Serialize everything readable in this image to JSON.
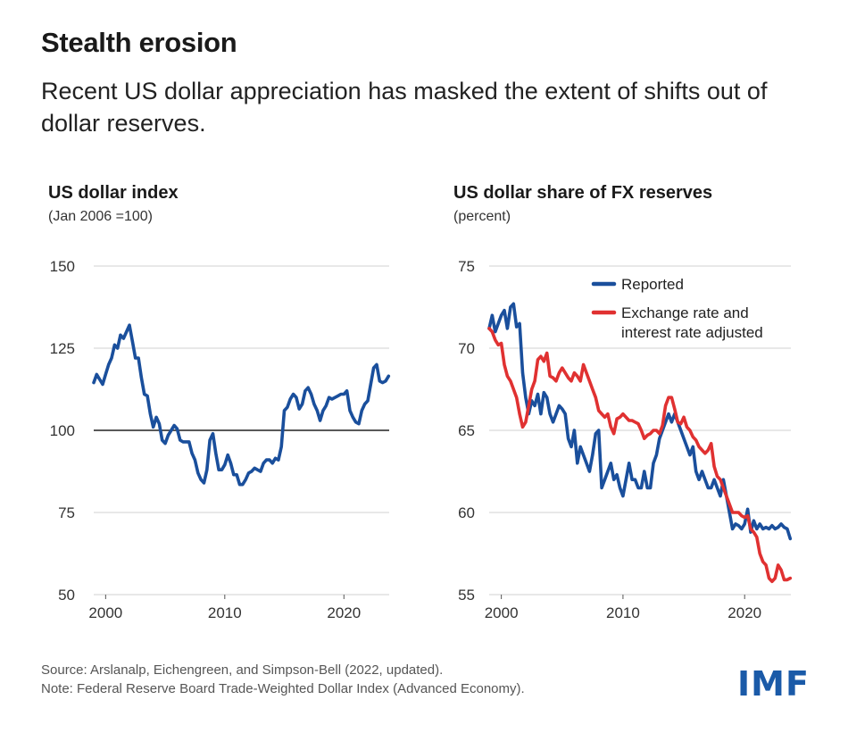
{
  "title": "Stealth erosion",
  "subtitle": "Recent US dollar appreciation has masked the extent of shifts out of dollar reserves.",
  "source_note": "Source: Arslanalp, Eichengreen, and Simpson-Bell (2022, updated).",
  "note": "Note: Federal Reserve Board Trade-Weighted Dollar Index (Advanced Economy).",
  "logo_text": "IMF",
  "colors": {
    "blue": "#1a4f9c",
    "red": "#e03131",
    "grid": "#d0d0d0",
    "reference": "#222222"
  },
  "chart_data": [
    {
      "type": "line",
      "title": "US dollar index",
      "subtitle": "(Jan 2006 =100)",
      "ylim": [
        50,
        150
      ],
      "yticks": [
        50,
        75,
        100,
        125,
        150
      ],
      "xlim": [
        1999,
        2023.8
      ],
      "xticks": [
        2000,
        2010,
        2020
      ],
      "grid": true,
      "reference_line": 100,
      "series": [
        {
          "color": "#1a4f9c",
          "x": [
            1999.0,
            1999.25,
            1999.5,
            1999.75,
            2000.0,
            2000.25,
            2000.5,
            2000.75,
            2001.0,
            2001.25,
            2001.5,
            2001.75,
            2002.0,
            2002.25,
            2002.5,
            2002.75,
            2003.0,
            2003.25,
            2003.5,
            2003.75,
            2004.0,
            2004.25,
            2004.5,
            2004.75,
            2005.0,
            2005.25,
            2005.5,
            2005.75,
            2006.0,
            2006.25,
            2006.5,
            2006.75,
            2007.0,
            2007.25,
            2007.5,
            2007.75,
            2008.0,
            2008.25,
            2008.5,
            2008.75,
            2009.0,
            2009.25,
            2009.5,
            2009.75,
            2010.0,
            2010.25,
            2010.5,
            2010.75,
            2011.0,
            2011.25,
            2011.5,
            2011.75,
            2012.0,
            2012.25,
            2012.5,
            2012.75,
            2013.0,
            2013.25,
            2013.5,
            2013.75,
            2014.0,
            2014.25,
            2014.5,
            2014.75,
            2015.0,
            2015.25,
            2015.5,
            2015.75,
            2016.0,
            2016.25,
            2016.5,
            2016.75,
            2017.0,
            2017.25,
            2017.5,
            2017.75,
            2018.0,
            2018.25,
            2018.5,
            2018.75,
            2019.0,
            2019.25,
            2019.5,
            2019.75,
            2020.0,
            2020.25,
            2020.5,
            2020.75,
            2021.0,
            2021.25,
            2021.5,
            2021.75,
            2022.0,
            2022.25,
            2022.5,
            2022.75,
            2023.0,
            2023.25,
            2023.5,
            2023.75
          ],
          "y": [
            114.5,
            117,
            115.5,
            114,
            117,
            120,
            122,
            126,
            125,
            129,
            128,
            130,
            132,
            127,
            122,
            122,
            116,
            111,
            110.5,
            105,
            101,
            104,
            102,
            97,
            96,
            98.5,
            100,
            101.5,
            100.5,
            97,
            96.5,
            96.5,
            96.5,
            93,
            91,
            87,
            85,
            84,
            88,
            97,
            99,
            93,
            88,
            88,
            89.5,
            92.5,
            90,
            86.5,
            86.5,
            83.5,
            83.5,
            85,
            87,
            87.5,
            88.5,
            88,
            87.5,
            90,
            91,
            91,
            90,
            91.5,
            91,
            95,
            106,
            107,
            109.5,
            111,
            110,
            106.5,
            108,
            112,
            113,
            111,
            108,
            106,
            103,
            106,
            107.5,
            110,
            109.5,
            110,
            110.5,
            111,
            111,
            112,
            106,
            104,
            102.5,
            102,
            106,
            108,
            109,
            114,
            119,
            120,
            115,
            114.5,
            115,
            116.5
          ]
        }
      ]
    },
    {
      "type": "line",
      "title": "US dollar share of FX reserves",
      "subtitle": "(percent)",
      "ylim": [
        55,
        75
      ],
      "yticks": [
        55,
        60,
        65,
        70,
        75
      ],
      "xlim": [
        1999,
        2023.8
      ],
      "xticks": [
        2000,
        2010,
        2020
      ],
      "grid": true,
      "legend_position": "top-right",
      "series": [
        {
          "name": "Reported",
          "color": "#1a4f9c",
          "x": [
            1999.0,
            1999.25,
            1999.5,
            1999.75,
            2000.0,
            2000.25,
            2000.5,
            2000.75,
            2001.0,
            2001.25,
            2001.5,
            2001.75,
            2002.0,
            2002.25,
            2002.5,
            2002.75,
            2003.0,
            2003.25,
            2003.5,
            2003.75,
            2004.0,
            2004.25,
            2004.5,
            2004.75,
            2005.0,
            2005.25,
            2005.5,
            2005.75,
            2006.0,
            2006.25,
            2006.5,
            2006.75,
            2007.0,
            2007.25,
            2007.5,
            2007.75,
            2008.0,
            2008.25,
            2008.5,
            2008.75,
            2009.0,
            2009.25,
            2009.5,
            2009.75,
            2010.0,
            2010.25,
            2010.5,
            2010.75,
            2011.0,
            2011.25,
            2011.5,
            2011.75,
            2012.0,
            2012.25,
            2012.5,
            2012.75,
            2013.0,
            2013.25,
            2013.5,
            2013.75,
            2014.0,
            2014.25,
            2014.5,
            2014.75,
            2015.0,
            2015.25,
            2015.5,
            2015.75,
            2016.0,
            2016.25,
            2016.5,
            2016.75,
            2017.0,
            2017.25,
            2017.5,
            2017.75,
            2018.0,
            2018.25,
            2018.5,
            2018.75,
            2019.0,
            2019.25,
            2019.5,
            2019.75,
            2020.0,
            2020.25,
            2020.5,
            2020.75,
            2021.0,
            2021.25,
            2021.5,
            2021.75,
            2022.0,
            2022.25,
            2022.5,
            2022.75,
            2023.0,
            2023.25,
            2023.5,
            2023.75
          ],
          "y": [
            71.2,
            72.0,
            71.0,
            71.5,
            72.0,
            72.3,
            71.2,
            72.5,
            72.7,
            71.3,
            71.5,
            68.5,
            67.0,
            66.0,
            66.8,
            66.5,
            67.2,
            66.0,
            67.3,
            67.0,
            66.0,
            65.5,
            66.0,
            66.5,
            66.3,
            66.0,
            64.5,
            64.0,
            65.0,
            63.0,
            64.0,
            63.5,
            63.0,
            62.5,
            63.5,
            64.8,
            65.0,
            61.5,
            62.0,
            62.5,
            63.0,
            62.0,
            62.3,
            61.5,
            61.0,
            62.0,
            63.0,
            62.0,
            62.0,
            61.5,
            61.5,
            62.5,
            61.5,
            61.5,
            63.0,
            63.5,
            64.5,
            65.0,
            65.5,
            66.0,
            65.5,
            66.0,
            65.5,
            65.0,
            64.5,
            64.0,
            63.5,
            64.0,
            62.5,
            62.0,
            62.5,
            62.0,
            61.5,
            61.5,
            62.0,
            61.5,
            61.0,
            62.0,
            61.0,
            60.0,
            59.0,
            59.3,
            59.2,
            59.0,
            59.3,
            60.2,
            58.8,
            59.5,
            59.0,
            59.3,
            59.0,
            59.1,
            59.0,
            59.2,
            59.0,
            59.1,
            59.3,
            59.1,
            59.0,
            58.4
          ]
        },
        {
          "name": "Exchange rate and\ninterest rate adjusted",
          "color": "#e03131",
          "x": [
            1999.0,
            1999.25,
            1999.5,
            1999.75,
            2000.0,
            2000.25,
            2000.5,
            2000.75,
            2001.0,
            2001.25,
            2001.5,
            2001.75,
            2002.0,
            2002.25,
            2002.5,
            2002.75,
            2003.0,
            2003.25,
            2003.5,
            2003.75,
            2004.0,
            2004.25,
            2004.5,
            2004.75,
            2005.0,
            2005.25,
            2005.5,
            2005.75,
            2006.0,
            2006.25,
            2006.5,
            2006.75,
            2007.0,
            2007.25,
            2007.5,
            2007.75,
            2008.0,
            2008.25,
            2008.5,
            2008.75,
            2009.0,
            2009.25,
            2009.5,
            2009.75,
            2010.0,
            2010.25,
            2010.5,
            2010.75,
            2011.0,
            2011.25,
            2011.5,
            2011.75,
            2012.0,
            2012.25,
            2012.5,
            2012.75,
            2013.0,
            2013.25,
            2013.5,
            2013.75,
            2014.0,
            2014.25,
            2014.5,
            2014.75,
            2015.0,
            2015.25,
            2015.5,
            2015.75,
            2016.0,
            2016.25,
            2016.5,
            2016.75,
            2017.0,
            2017.25,
            2017.5,
            2017.75,
            2018.0,
            2018.25,
            2018.5,
            2018.75,
            2019.0,
            2019.25,
            2019.5,
            2019.75,
            2020.0,
            2020.25,
            2020.5,
            2020.75,
            2021.0,
            2021.25,
            2021.5,
            2021.75,
            2022.0,
            2022.25,
            2022.5,
            2022.75,
            2023.0,
            2023.25,
            2023.5,
            2023.75
          ],
          "y": [
            71.2,
            71.0,
            70.5,
            70.2,
            70.3,
            69.0,
            68.3,
            68.0,
            67.5,
            67.0,
            66.0,
            65.2,
            65.5,
            66.5,
            67.5,
            68.0,
            69.3,
            69.5,
            69.2,
            69.7,
            68.3,
            68.2,
            68.0,
            68.5,
            68.8,
            68.5,
            68.2,
            68.0,
            68.5,
            68.3,
            68.0,
            69.0,
            68.5,
            68.0,
            67.5,
            67.0,
            66.2,
            66.0,
            65.8,
            66.0,
            65.2,
            64.8,
            65.7,
            65.8,
            66.0,
            65.8,
            65.6,
            65.6,
            65.5,
            65.4,
            65.0,
            64.5,
            64.7,
            64.8,
            65.0,
            65.0,
            64.8,
            65.3,
            66.5,
            67.0,
            67.0,
            66.3,
            65.5,
            65.4,
            65.8,
            65.2,
            65.0,
            64.6,
            64.4,
            64.0,
            63.8,
            63.6,
            63.8,
            64.2,
            62.8,
            62.2,
            62.0,
            61.5,
            61.0,
            60.5,
            60.0,
            60.0,
            60.0,
            59.8,
            59.7,
            59.8,
            59.0,
            58.8,
            58.5,
            57.5,
            57.0,
            56.8,
            56.0,
            55.8,
            56.0,
            56.8,
            56.5,
            55.9,
            55.9,
            56.0
          ]
        }
      ]
    }
  ]
}
